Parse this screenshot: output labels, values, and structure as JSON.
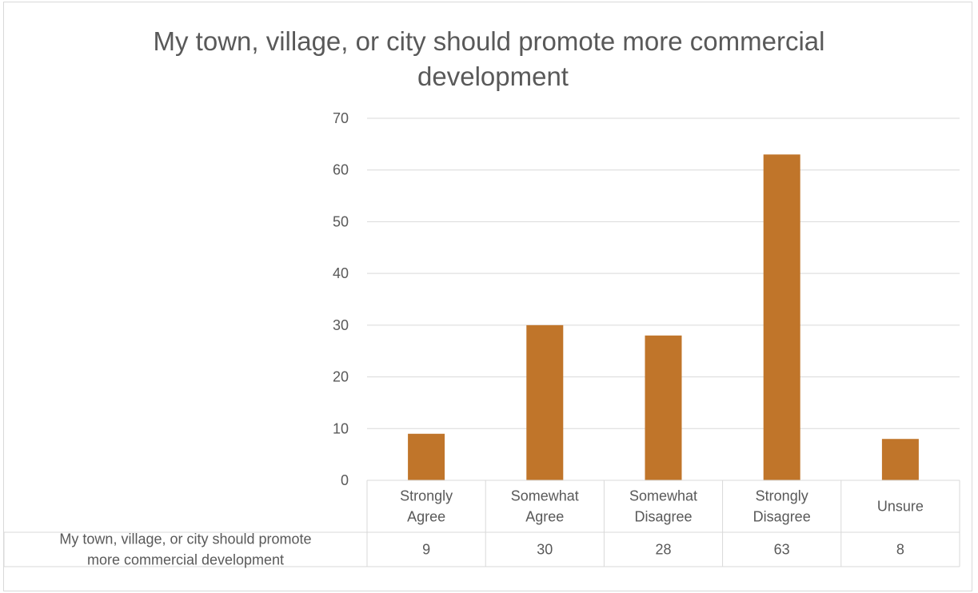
{
  "chart_data": {
    "type": "bar",
    "title_lines": [
      "My town, village, or city should promote more commercial",
      "development"
    ],
    "categories": [
      [
        "Strongly",
        "Agree"
      ],
      [
        "Somewhat",
        "Agree"
      ],
      [
        "Somewhat",
        "Disagree"
      ],
      [
        "Strongly",
        "Disagree"
      ],
      [
        "Unsure"
      ]
    ],
    "series": [
      {
        "name_lines": [
          "My town, village, or city should promote",
          "more commercial development"
        ],
        "values": [
          9,
          30,
          28,
          63,
          8
        ],
        "value_labels": [
          "9",
          "30",
          "28",
          "63",
          "8"
        ],
        "color": "#c0752a"
      }
    ],
    "y_ticks": [
      "0",
      "10",
      "20",
      "30",
      "40",
      "50",
      "60",
      "70"
    ],
    "ylim": [
      0,
      70
    ],
    "grid": true,
    "data_table": true
  }
}
